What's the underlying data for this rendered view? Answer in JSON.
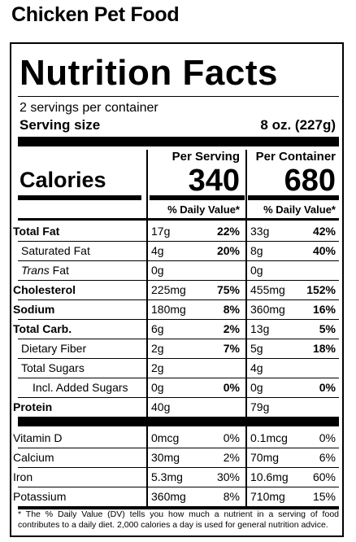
{
  "product_title": "Chicken Pet Food",
  "header": {
    "title": "Nutrition Facts",
    "servings_per_container": "2 servings per container",
    "serving_size_label": "Serving size",
    "serving_size_value": "8 oz. (227g)"
  },
  "columns": {
    "per_serving": "Per Serving",
    "per_container": "Per Container",
    "dv_header": "% Daily Value*"
  },
  "calories": {
    "label": "Calories",
    "per_serving": "340",
    "per_container": "680"
  },
  "nutrients": [
    {
      "name": "Total Fat",
      "serving_amount": "17g",
      "serving_dv": "22%",
      "container_amount": "33g",
      "container_dv": "42%"
    },
    {
      "name": "Saturated Fat",
      "serving_amount": "4g",
      "serving_dv": "20%",
      "container_amount": "8g",
      "container_dv": "40%"
    },
    {
      "name_italic": "Trans",
      "name_rest": " Fat",
      "serving_amount": "0g",
      "serving_dv": "",
      "container_amount": "0g",
      "container_dv": ""
    },
    {
      "name": "Cholesterol",
      "serving_amount": "225mg",
      "serving_dv": "75%",
      "container_amount": "455mg",
      "container_dv": "152%"
    },
    {
      "name": "Sodium",
      "serving_amount": "180mg",
      "serving_dv": "8%",
      "container_amount": "360mg",
      "container_dv": "16%"
    },
    {
      "name": "Total Carb.",
      "serving_amount": "6g",
      "serving_dv": "2%",
      "container_amount": "13g",
      "container_dv": "5%"
    },
    {
      "name": "Dietary Fiber",
      "serving_amount": "2g",
      "serving_dv": "7%",
      "container_amount": "5g",
      "container_dv": "18%"
    },
    {
      "name": "Total Sugars",
      "serving_amount": "2g",
      "serving_dv": "",
      "container_amount": "4g",
      "container_dv": ""
    },
    {
      "name": "Incl. Added Sugars",
      "serving_amount": "0g",
      "serving_dv": "0%",
      "container_amount": "0g",
      "container_dv": "0%"
    },
    {
      "name": "Protein",
      "serving_amount": "40g",
      "serving_dv": "",
      "container_amount": "79g",
      "container_dv": ""
    }
  ],
  "vitamins": [
    {
      "name": "Vitamin D",
      "serving_amount": "0mcg",
      "serving_dv": "0%",
      "container_amount": "0.1mcg",
      "container_dv": "0%"
    },
    {
      "name": "Calcium",
      "serving_amount": "30mg",
      "serving_dv": "2%",
      "container_amount": "70mg",
      "container_dv": "6%"
    },
    {
      "name": "Iron",
      "serving_amount": "5.3mg",
      "serving_dv": "30%",
      "container_amount": "10.6mg",
      "container_dv": "60%"
    },
    {
      "name": "Potassium",
      "serving_amount": "360mg",
      "serving_dv": "8%",
      "container_amount": "710mg",
      "container_dv": "15%"
    }
  ],
  "footnote": "* The % Daily Value (DV) tells you how much a nutrient in a serving of food contributes to a daily diet. 2,000 calories a day is used for general nutrition advice."
}
